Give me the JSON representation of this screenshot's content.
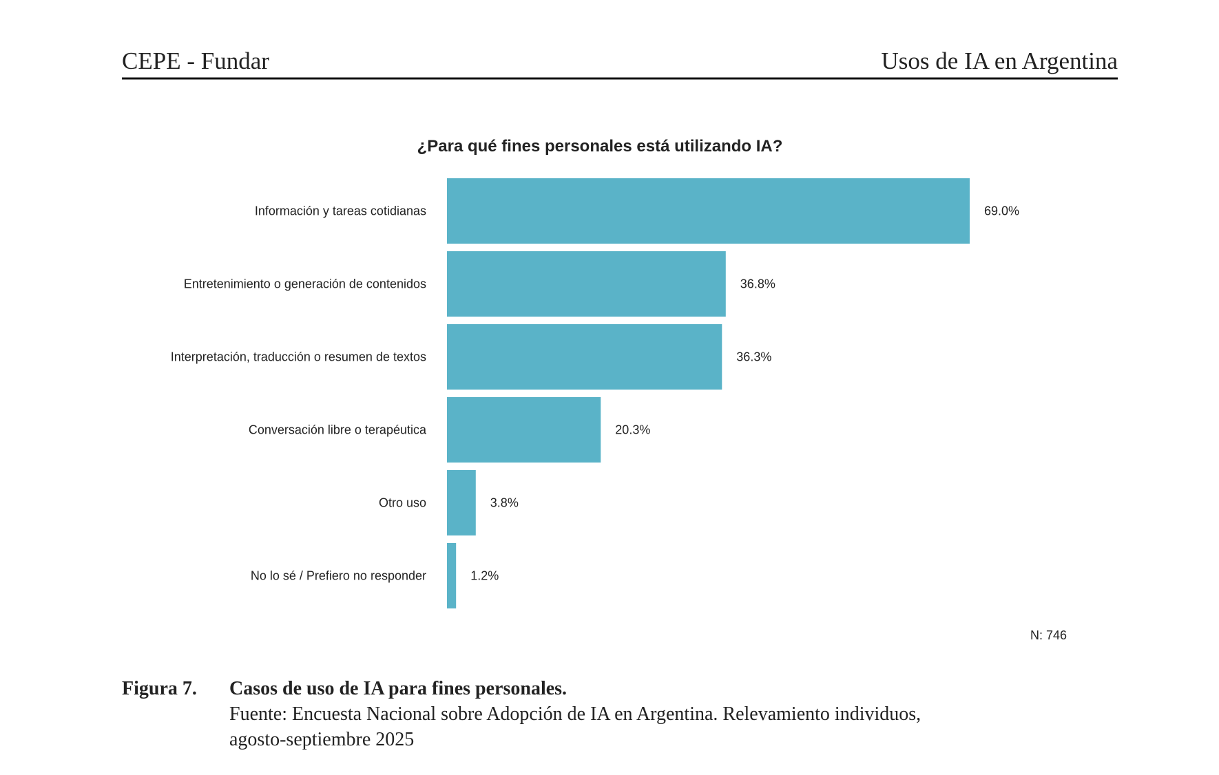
{
  "header": {
    "left": "CEPE - Fundar",
    "right": "Usos de IA en Argentina"
  },
  "chart_data": {
    "type": "bar",
    "orientation": "horizontal",
    "title": "¿Para qué fines personales está utilizando IA?",
    "categories": [
      "Información y tareas cotidianas",
      "Entretenimiento o generación de contenidos",
      "Interpretación, traducción o resumen de textos",
      "Conversación libre o terapéutica",
      "Otro uso",
      "No lo sé / Prefiero no responder"
    ],
    "values": [
      69.0,
      36.8,
      36.3,
      20.3,
      3.8,
      1.2
    ],
    "value_labels": [
      "69.0%",
      "36.8%",
      "36.3%",
      "20.3%",
      "3.8%",
      "1.2%"
    ],
    "color": "#5ab3c8",
    "note": "N: 746"
  },
  "caption": {
    "label": "Figura 7.",
    "title": "Casos de uso de IA para fines personales.",
    "source": [
      "Fuente: Encuesta Nacional sobre Adopción de IA en Argentina. Relevamiento individuos,",
      "agosto-septiembre 2025"
    ]
  }
}
